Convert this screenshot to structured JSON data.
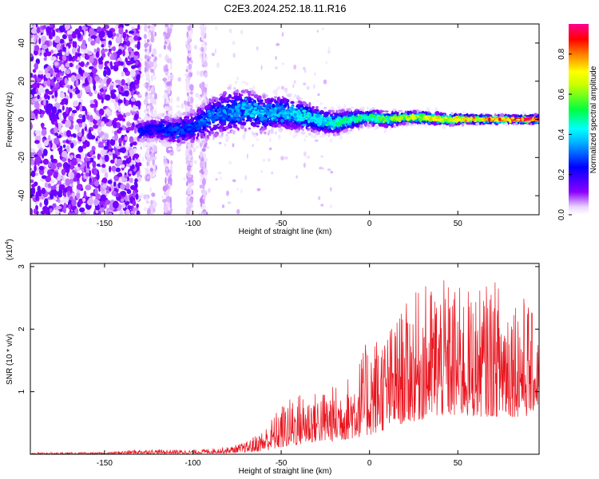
{
  "title": "C2E3.2024.252.18.11.R16",
  "chart_data": [
    {
      "type": "heatmap",
      "xlabel": "Height of straight line (km)",
      "ylabel": "Frequency (Hz)",
      "xlim": [
        -192,
        96
      ],
      "ylim": [
        -50,
        50
      ],
      "xticks": [
        "-150",
        "-100",
        "-50",
        "0",
        "50"
      ],
      "xtick_values": [
        -150,
        -100,
        -50,
        0,
        50
      ],
      "yticks": [
        "-40",
        "-20",
        "0",
        "20",
        "40"
      ],
      "ytick_values": [
        -40,
        -20,
        0,
        20,
        40
      ],
      "colorbar": {
        "label": "Normalized spectral amplitude",
        "range": [
          0,
          0.95
        ],
        "ticks": [
          "0.0",
          "0.2",
          "0.4",
          "0.6",
          "0.8"
        ],
        "tick_values": [
          0,
          0.2,
          0.4,
          0.6,
          0.8
        ],
        "colors": [
          "#ffffff",
          "#8a00ff",
          "#0000ff",
          "#00ffff",
          "#00ff00",
          "#ffff00",
          "#ff8000",
          "#ff0000",
          "#ff00aa"
        ]
      },
      "ridge": {
        "x": [
          -130,
          -120,
          -110,
          -100,
          -90,
          -80,
          -70,
          -60,
          -50,
          -40,
          -30,
          -20,
          -10,
          0,
          10,
          20,
          30,
          40,
          50,
          60,
          70,
          80,
          90,
          95
        ],
        "center_hz": [
          -6,
          -5,
          -6,
          -4,
          1,
          4,
          5,
          3,
          4,
          2,
          0,
          -2,
          0,
          1,
          0,
          1,
          1,
          0,
          0,
          0,
          0,
          0,
          0,
          0
        ],
        "spread_hz": [
          6,
          7,
          8,
          9,
          11,
          12,
          11,
          10,
          9,
          8,
          7,
          6,
          5,
          4,
          4,
          3,
          3,
          3,
          2.5,
          2,
          2,
          2,
          2,
          2
        ],
        "peak_amplitude": [
          0.25,
          0.25,
          0.3,
          0.3,
          0.35,
          0.35,
          0.4,
          0.4,
          0.4,
          0.45,
          0.45,
          0.5,
          0.5,
          0.55,
          0.6,
          0.65,
          0.7,
          0.75,
          0.75,
          0.8,
          0.85,
          0.9,
          0.9,
          0.9
        ]
      },
      "noise_region_x": [
        -192,
        -130
      ]
    },
    {
      "type": "line",
      "xlabel": "Height of straight line (km)",
      "ylabel": "SNR (10 * v/v)",
      "y_multiplier": "(x10",
      "y_multiplier_exp": "4",
      "y_multiplier_close": ")",
      "xlim": [
        -192,
        96
      ],
      "ylim": [
        0,
        3.05
      ],
      "xticks": [
        "-150",
        "-100",
        "-50",
        "0",
        "50"
      ],
      "xtick_values": [
        -150,
        -100,
        -50,
        0,
        50
      ],
      "yticks": [
        "1",
        "2",
        "3"
      ],
      "ytick_values": [
        1,
        2,
        3
      ],
      "line_color": "#e8141e",
      "envelope": {
        "x": [
          -192,
          -150,
          -130,
          -100,
          -80,
          -70,
          -60,
          -50,
          -40,
          -30,
          -20,
          -10,
          0,
          10,
          20,
          30,
          40,
          50,
          60,
          70,
          80,
          90,
          96
        ],
        "y_max": [
          0.03,
          0.03,
          0.08,
          0.07,
          0.12,
          0.2,
          0.4,
          0.8,
          1.0,
          1.0,
          1.1,
          1.3,
          1.9,
          2.0,
          2.4,
          2.7,
          2.8,
          2.7,
          2.6,
          2.8,
          2.7,
          2.5,
          1.8
        ],
        "y_min": [
          0.0,
          0.0,
          0.01,
          0.01,
          0.02,
          0.03,
          0.05,
          0.1,
          0.15,
          0.2,
          0.2,
          0.25,
          0.3,
          0.4,
          0.5,
          0.55,
          0.6,
          0.6,
          0.6,
          0.6,
          0.6,
          0.6,
          0.8
        ]
      }
    }
  ]
}
